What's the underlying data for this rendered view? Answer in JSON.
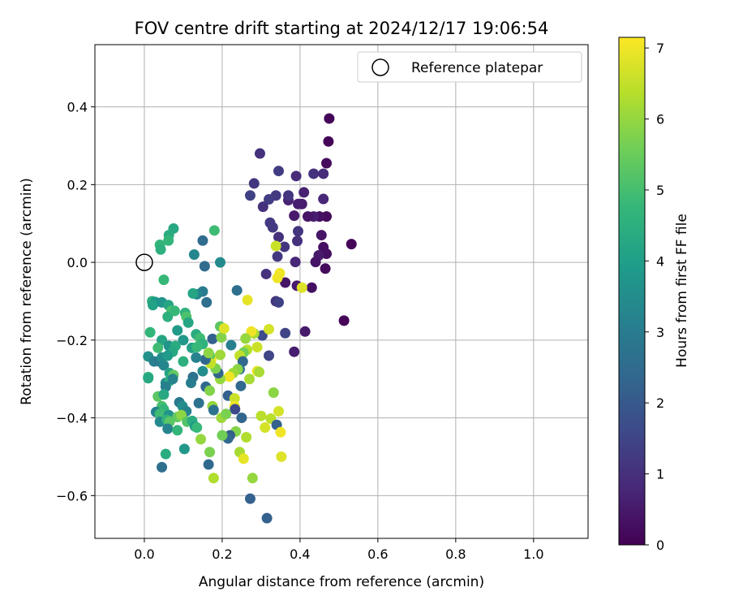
{
  "chart_data": {
    "type": "scatter",
    "title": "FOV centre drift starting at 2024/12/17 19:06:54",
    "xlabel": "Angular distance from reference (arcmin)",
    "ylabel": "Rotation from reference (arcmin)",
    "xlim": [
      -0.127,
      1.14
    ],
    "ylim": [
      -0.71,
      0.56
    ],
    "x_ticks": [
      0.0,
      0.2,
      0.4,
      0.6,
      0.8,
      1.0
    ],
    "x_tick_labels": [
      "0.0",
      "0.2",
      "0.4",
      "0.6",
      "0.8",
      "1.0"
    ],
    "y_ticks": [
      -0.6,
      -0.4,
      -0.2,
      0.0,
      0.2,
      0.4
    ],
    "y_tick_labels": [
      "−0.6",
      "−0.4",
      "−0.2",
      "0.0",
      "0.2",
      "0.4"
    ],
    "grid": true,
    "legend": {
      "placement": "top-right",
      "entries": [
        {
          "label": "Reference platepar",
          "marker": "open-circle",
          "color": "#000000"
        }
      ]
    },
    "reference_point": {
      "x": 0.0,
      "y": 0.0
    },
    "colorbar": {
      "label": "Hours from first FF file",
      "colormap": "viridis",
      "range": [
        0,
        7.15
      ],
      "ticks": [
        0,
        1,
        2,
        3,
        4,
        5,
        6,
        7
      ],
      "tick_labels": [
        "0",
        "1",
        "2",
        "3",
        "4",
        "5",
        "6",
        "7"
      ]
    },
    "colormap_stops": [
      "#440154",
      "#482878",
      "#3e4989",
      "#31688e",
      "#26828e",
      "#1f9e89",
      "#35b779",
      "#6ece58",
      "#b5de2b",
      "#fde725"
    ],
    "points": [
      {
        "x": 0.475,
        "y": 0.37,
        "c": 0.1
      },
      {
        "x": 0.473,
        "y": 0.311,
        "c": 0.1
      },
      {
        "x": 0.468,
        "y": 0.255,
        "c": 0.2
      },
      {
        "x": 0.532,
        "y": 0.047,
        "c": 0.1
      },
      {
        "x": 0.513,
        "y": -0.15,
        "c": 0.1
      },
      {
        "x": 0.468,
        "y": 0.118,
        "c": 0.2
      },
      {
        "x": 0.46,
        "y": 0.039,
        "c": 0.3
      },
      {
        "x": 0.468,
        "y": 0.022,
        "c": 0.3
      },
      {
        "x": 0.465,
        "y": -0.016,
        "c": 0.2
      },
      {
        "x": 0.448,
        "y": 0.018,
        "c": 0.5
      },
      {
        "x": 0.44,
        "y": 0.001,
        "c": 0.4
      },
      {
        "x": 0.45,
        "y": 0.118,
        "c": 0.3
      },
      {
        "x": 0.435,
        "y": 0.118,
        "c": 0.6
      },
      {
        "x": 0.42,
        "y": 0.118,
        "c": 0.4
      },
      {
        "x": 0.455,
        "y": 0.07,
        "c": 0.4
      },
      {
        "x": 0.46,
        "y": 0.163,
        "c": 0.8
      },
      {
        "x": 0.435,
        "y": 0.228,
        "c": 1.0
      },
      {
        "x": 0.46,
        "y": 0.228,
        "c": 0.9
      },
      {
        "x": 0.39,
        "y": 0.222,
        "c": 0.9
      },
      {
        "x": 0.41,
        "y": 0.18,
        "c": 0.7
      },
      {
        "x": 0.405,
        "y": 0.15,
        "c": 0.6
      },
      {
        "x": 0.395,
        "y": 0.15,
        "c": 0.6
      },
      {
        "x": 0.385,
        "y": 0.12,
        "c": 0.5
      },
      {
        "x": 0.37,
        "y": 0.16,
        "c": 0.7
      },
      {
        "x": 0.37,
        "y": 0.172,
        "c": 1.1
      },
      {
        "x": 0.345,
        "y": 0.235,
        "c": 1.3
      },
      {
        "x": 0.338,
        "y": 0.172,
        "c": 1.2
      },
      {
        "x": 0.32,
        "y": 0.162,
        "c": 1.3
      },
      {
        "x": 0.297,
        "y": 0.28,
        "c": 1.0
      },
      {
        "x": 0.282,
        "y": 0.203,
        "c": 1.1
      },
      {
        "x": 0.272,
        "y": 0.172,
        "c": 1.4
      },
      {
        "x": 0.305,
        "y": 0.143,
        "c": 1.0
      },
      {
        "x": 0.323,
        "y": 0.102,
        "c": 1.2
      },
      {
        "x": 0.33,
        "y": 0.09,
        "c": 1.2
      },
      {
        "x": 0.345,
        "y": 0.065,
        "c": 1.0
      },
      {
        "x": 0.395,
        "y": 0.08,
        "c": 1.1
      },
      {
        "x": 0.393,
        "y": 0.055,
        "c": 1.0
      },
      {
        "x": 0.36,
        "y": 0.04,
        "c": 1.1
      },
      {
        "x": 0.342,
        "y": 0.015,
        "c": 1.2
      },
      {
        "x": 0.388,
        "y": 0.001,
        "c": 0.8
      },
      {
        "x": 0.313,
        "y": -0.03,
        "c": 1.0
      },
      {
        "x": 0.362,
        "y": -0.052,
        "c": 0.4
      },
      {
        "x": 0.392,
        "y": -0.06,
        "c": 0.5
      },
      {
        "x": 0.43,
        "y": -0.065,
        "c": 0.3
      },
      {
        "x": 0.338,
        "y": -0.1,
        "c": 1.1
      },
      {
        "x": 0.345,
        "y": -0.103,
        "c": 1.4
      },
      {
        "x": 0.362,
        "y": -0.182,
        "c": 1.5
      },
      {
        "x": 0.413,
        "y": -0.178,
        "c": 0.5
      },
      {
        "x": 0.385,
        "y": -0.23,
        "c": 0.6
      },
      {
        "x": 0.32,
        "y": -0.24,
        "c": 1.5
      },
      {
        "x": 0.342,
        "y": -0.04,
        "c": 7.0
      },
      {
        "x": 0.405,
        "y": -0.065,
        "c": 6.8
      },
      {
        "x": 0.338,
        "y": 0.042,
        "c": 6.6
      },
      {
        "x": 0.348,
        "y": -0.028,
        "c": 7.0
      },
      {
        "x": 0.265,
        "y": -0.097,
        "c": 6.9
      },
      {
        "x": 0.303,
        "y": -0.188,
        "c": 1.7
      },
      {
        "x": 0.282,
        "y": -0.183,
        "c": 6.2
      },
      {
        "x": 0.275,
        "y": -0.178,
        "c": 7.0
      },
      {
        "x": 0.26,
        "y": -0.196,
        "c": 6.0
      },
      {
        "x": 0.32,
        "y": -0.172,
        "c": 6.7
      },
      {
        "x": 0.29,
        "y": -0.218,
        "c": 6.6
      },
      {
        "x": 0.264,
        "y": -0.225,
        "c": 6.4
      },
      {
        "x": 0.255,
        "y": -0.232,
        "c": 5.6
      },
      {
        "x": 0.245,
        "y": -0.24,
        "c": 6.5
      },
      {
        "x": 0.253,
        "y": -0.255,
        "c": 2.4
      },
      {
        "x": 0.245,
        "y": -0.275,
        "c": 2.7
      },
      {
        "x": 0.29,
        "y": -0.28,
        "c": 6.9
      },
      {
        "x": 0.295,
        "y": -0.282,
        "c": 6.2
      },
      {
        "x": 0.27,
        "y": -0.3,
        "c": 6.2
      },
      {
        "x": 0.24,
        "y": -0.275,
        "c": 5.9
      },
      {
        "x": 0.228,
        "y": -0.285,
        "c": 6.1
      },
      {
        "x": 0.218,
        "y": -0.294,
        "c": 7.0
      },
      {
        "x": 0.248,
        "y": -0.318,
        "c": 2.4
      },
      {
        "x": 0.215,
        "y": -0.343,
        "c": 2.2
      },
      {
        "x": 0.232,
        "y": -0.35,
        "c": 6.6
      },
      {
        "x": 0.232,
        "y": -0.37,
        "c": 7.0
      },
      {
        "x": 0.233,
        "y": -0.378,
        "c": 1.6
      },
      {
        "x": 0.25,
        "y": -0.4,
        "c": 2.3
      },
      {
        "x": 0.235,
        "y": -0.435,
        "c": 5.8
      },
      {
        "x": 0.22,
        "y": -0.445,
        "c": 2.1
      },
      {
        "x": 0.215,
        "y": -0.453,
        "c": 2.4
      },
      {
        "x": 0.2,
        "y": -0.445,
        "c": 5.6
      },
      {
        "x": 0.198,
        "y": -0.4,
        "c": 6.1
      },
      {
        "x": 0.21,
        "y": -0.39,
        "c": 5.7
      },
      {
        "x": 0.175,
        "y": -0.37,
        "c": 6.0
      },
      {
        "x": 0.178,
        "y": -0.38,
        "c": 2.7
      },
      {
        "x": 0.195,
        "y": -0.3,
        "c": 6.0
      },
      {
        "x": 0.19,
        "y": -0.285,
        "c": 2.3
      },
      {
        "x": 0.183,
        "y": -0.273,
        "c": 5.7
      },
      {
        "x": 0.172,
        "y": -0.25,
        "c": 7.0
      },
      {
        "x": 0.168,
        "y": -0.24,
        "c": 5.4
      },
      {
        "x": 0.17,
        "y": -0.26,
        "c": 6.5
      },
      {
        "x": 0.157,
        "y": -0.25,
        "c": 2.4
      },
      {
        "x": 0.165,
        "y": -0.233,
        "c": 5.9
      },
      {
        "x": 0.195,
        "y": -0.238,
        "c": 6.1
      },
      {
        "x": 0.175,
        "y": -0.197,
        "c": 2.2
      },
      {
        "x": 0.198,
        "y": -0.193,
        "c": 5.8
      },
      {
        "x": 0.195,
        "y": -0.165,
        "c": 5.3
      },
      {
        "x": 0.205,
        "y": -0.17,
        "c": 6.8
      },
      {
        "x": 0.223,
        "y": -0.213,
        "c": 3.1
      },
      {
        "x": 0.238,
        "y": -0.072,
        "c": 2.6
      },
      {
        "x": 0.16,
        "y": -0.103,
        "c": 2.6
      },
      {
        "x": 0.15,
        "y": -0.075,
        "c": 3.0
      },
      {
        "x": 0.135,
        "y": -0.082,
        "c": 3.3
      },
      {
        "x": 0.125,
        "y": -0.08,
        "c": 4.2
      },
      {
        "x": 0.155,
        "y": -0.01,
        "c": 2.5
      },
      {
        "x": 0.195,
        "y": 0.0,
        "c": 3.4
      },
      {
        "x": 0.128,
        "y": 0.02,
        "c": 3.3
      },
      {
        "x": 0.18,
        "y": 0.082,
        "c": 4.9
      },
      {
        "x": 0.15,
        "y": 0.056,
        "c": 2.5
      },
      {
        "x": 0.075,
        "y": 0.087,
        "c": 4.3
      },
      {
        "x": 0.063,
        "y": 0.07,
        "c": 4.4
      },
      {
        "x": 0.062,
        "y": 0.056,
        "c": 4.7
      },
      {
        "x": 0.04,
        "y": 0.045,
        "c": 4.7
      },
      {
        "x": 0.042,
        "y": 0.033,
        "c": 4.5
      },
      {
        "x": 0.05,
        "y": -0.045,
        "c": 4.8
      },
      {
        "x": 0.02,
        "y": -0.1,
        "c": 4.5
      },
      {
        "x": 0.028,
        "y": -0.102,
        "c": 3.9
      },
      {
        "x": 0.022,
        "y": -0.11,
        "c": 4.1
      },
      {
        "x": 0.045,
        "y": -0.103,
        "c": 3.7
      },
      {
        "x": 0.062,
        "y": -0.11,
        "c": 4.2
      },
      {
        "x": 0.07,
        "y": -0.125,
        "c": 5.1
      },
      {
        "x": 0.06,
        "y": -0.14,
        "c": 4.5
      },
      {
        "x": 0.078,
        "y": -0.125,
        "c": 4.8
      },
      {
        "x": 0.105,
        "y": -0.13,
        "c": 4.6
      },
      {
        "x": 0.108,
        "y": -0.14,
        "c": 5.1
      },
      {
        "x": 0.113,
        "y": -0.155,
        "c": 4.2
      },
      {
        "x": 0.085,
        "y": -0.175,
        "c": 3.9
      },
      {
        "x": 0.015,
        "y": -0.18,
        "c": 4.7
      },
      {
        "x": 0.045,
        "y": -0.2,
        "c": 4.2
      },
      {
        "x": 0.1,
        "y": -0.2,
        "c": 3.8
      },
      {
        "x": 0.133,
        "y": -0.185,
        "c": 4.4
      },
      {
        "x": 0.143,
        "y": -0.195,
        "c": 4.9
      },
      {
        "x": 0.15,
        "y": -0.21,
        "c": 4.6
      },
      {
        "x": 0.063,
        "y": -0.215,
        "c": 3.7
      },
      {
        "x": 0.08,
        "y": -0.215,
        "c": 4.4
      },
      {
        "x": 0.035,
        "y": -0.22,
        "c": 4.9
      },
      {
        "x": 0.073,
        "y": -0.23,
        "c": 4.3
      },
      {
        "x": 0.122,
        "y": -0.22,
        "c": 4.1
      },
      {
        "x": 0.135,
        "y": -0.218,
        "c": 4.8
      },
      {
        "x": 0.01,
        "y": -0.242,
        "c": 3.6
      },
      {
        "x": 0.025,
        "y": -0.255,
        "c": 3.1
      },
      {
        "x": 0.038,
        "y": -0.255,
        "c": 2.9
      },
      {
        "x": 0.045,
        "y": -0.245,
        "c": 3.5
      },
      {
        "x": 0.05,
        "y": -0.265,
        "c": 3.3
      },
      {
        "x": 0.06,
        "y": -0.24,
        "c": 3.9
      },
      {
        "x": 0.1,
        "y": -0.255,
        "c": 4.5
      },
      {
        "x": 0.133,
        "y": -0.245,
        "c": 3.2
      },
      {
        "x": 0.15,
        "y": -0.28,
        "c": 3.5
      },
      {
        "x": 0.065,
        "y": -0.285,
        "c": 4.2
      },
      {
        "x": 0.075,
        "y": -0.29,
        "c": 5.4
      },
      {
        "x": 0.01,
        "y": -0.295,
        "c": 4.7
      },
      {
        "x": 0.01,
        "y": -0.298,
        "c": 4.3
      },
      {
        "x": 0.055,
        "y": -0.31,
        "c": 3.4
      },
      {
        "x": 0.065,
        "y": -0.305,
        "c": 4.5
      },
      {
        "x": 0.073,
        "y": -0.3,
        "c": 3.2
      },
      {
        "x": 0.055,
        "y": -0.32,
        "c": 3.1
      },
      {
        "x": 0.125,
        "y": -0.295,
        "c": 2.7
      },
      {
        "x": 0.12,
        "y": -0.31,
        "c": 3.0
      },
      {
        "x": 0.158,
        "y": -0.32,
        "c": 2.4
      },
      {
        "x": 0.168,
        "y": -0.33,
        "c": 5.8
      },
      {
        "x": 0.035,
        "y": -0.345,
        "c": 5.3
      },
      {
        "x": 0.05,
        "y": -0.34,
        "c": 4.3
      },
      {
        "x": 0.09,
        "y": -0.36,
        "c": 2.9
      },
      {
        "x": 0.14,
        "y": -0.362,
        "c": 2.7
      },
      {
        "x": 0.098,
        "y": -0.37,
        "c": 3.5
      },
      {
        "x": 0.045,
        "y": -0.37,
        "c": 5.0
      },
      {
        "x": 0.05,
        "y": -0.378,
        "c": 4.7
      },
      {
        "x": 0.108,
        "y": -0.383,
        "c": 3.2
      },
      {
        "x": 0.03,
        "y": -0.385,
        "c": 3.2
      },
      {
        "x": 0.04,
        "y": -0.39,
        "c": 4.9
      },
      {
        "x": 0.063,
        "y": -0.393,
        "c": 3.7
      },
      {
        "x": 0.085,
        "y": -0.398,
        "c": 5.4
      },
      {
        "x": 0.095,
        "y": -0.393,
        "c": 5.9
      },
      {
        "x": 0.04,
        "y": -0.41,
        "c": 3.4
      },
      {
        "x": 0.058,
        "y": -0.405,
        "c": 4.6
      },
      {
        "x": 0.065,
        "y": -0.41,
        "c": 5.3
      },
      {
        "x": 0.11,
        "y": -0.41,
        "c": 5.2
      },
      {
        "x": 0.123,
        "y": -0.408,
        "c": 4.4
      },
      {
        "x": 0.13,
        "y": -0.422,
        "c": 3.9
      },
      {
        "x": 0.135,
        "y": -0.425,
        "c": 4.8
      },
      {
        "x": 0.06,
        "y": -0.428,
        "c": 3.2
      },
      {
        "x": 0.085,
        "y": -0.432,
        "c": 4.7
      },
      {
        "x": 0.145,
        "y": -0.455,
        "c": 6.0
      },
      {
        "x": 0.103,
        "y": -0.48,
        "c": 3.8
      },
      {
        "x": 0.055,
        "y": -0.493,
        "c": 4.4
      },
      {
        "x": 0.045,
        "y": -0.527,
        "c": 2.6
      },
      {
        "x": 0.165,
        "y": -0.52,
        "c": 2.4
      },
      {
        "x": 0.168,
        "y": -0.488,
        "c": 5.7
      },
      {
        "x": 0.178,
        "y": -0.555,
        "c": 6.3
      },
      {
        "x": 0.245,
        "y": -0.488,
        "c": 6.2
      },
      {
        "x": 0.255,
        "y": -0.505,
        "c": 6.9
      },
      {
        "x": 0.262,
        "y": -0.45,
        "c": 6.3
      },
      {
        "x": 0.272,
        "y": -0.608,
        "c": 2.2
      },
      {
        "x": 0.278,
        "y": -0.555,
        "c": 6.0
      },
      {
        "x": 0.315,
        "y": -0.658,
        "c": 2.2
      },
      {
        "x": 0.3,
        "y": -0.395,
        "c": 6.4
      },
      {
        "x": 0.31,
        "y": -0.425,
        "c": 6.7
      },
      {
        "x": 0.325,
        "y": -0.402,
        "c": 6.4
      },
      {
        "x": 0.332,
        "y": -0.335,
        "c": 5.9
      },
      {
        "x": 0.34,
        "y": -0.418,
        "c": 2.2
      },
      {
        "x": 0.345,
        "y": -0.383,
        "c": 6.7
      },
      {
        "x": 0.35,
        "y": -0.437,
        "c": 7.0
      },
      {
        "x": 0.352,
        "y": -0.5,
        "c": 6.8
      }
    ]
  }
}
